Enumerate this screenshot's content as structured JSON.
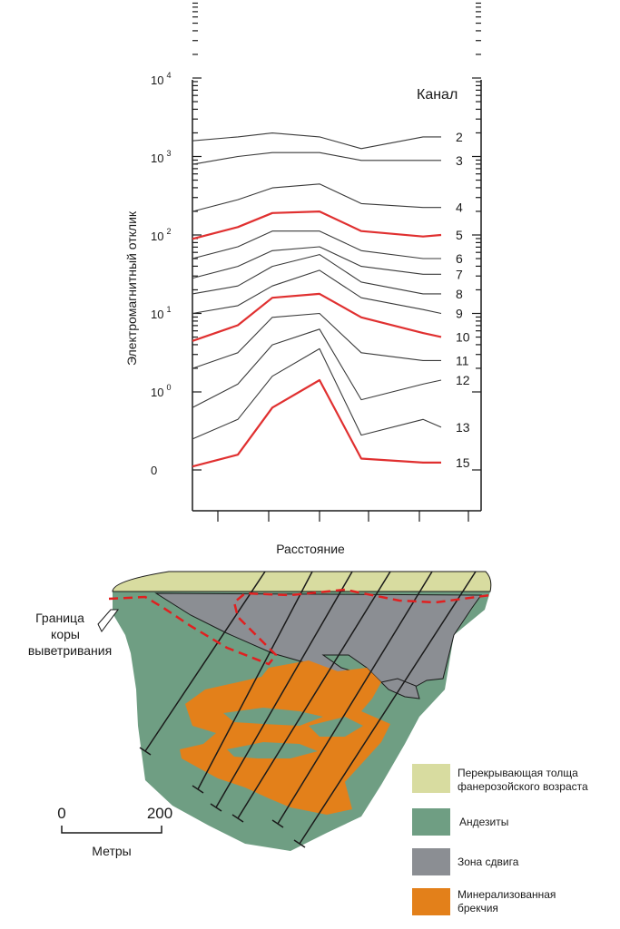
{
  "chart_data": {
    "type": "line",
    "y_axis_label": "Электромагнитный отклик",
    "x_axis_label": "Расстояние",
    "y_scale": "log",
    "y_tick_labels": [
      {
        "base": "10",
        "exp": "4"
      },
      {
        "base": "10",
        "exp": "3"
      },
      {
        "base": "10",
        "exp": "2"
      },
      {
        "base": "10",
        "exp": "1"
      },
      {
        "base": "10",
        "exp": "0"
      },
      {
        "base": "0",
        "exp": ""
      }
    ],
    "channel_header": "Канал",
    "highlight_color": "#e03030",
    "line_color": "#3a3a3a",
    "channels": [
      {
        "label": "2",
        "highlight": false,
        "values": [
          3.2,
          3.25,
          3.3,
          3.25,
          3.1,
          3.25,
          3.25
        ]
      },
      {
        "label": "3",
        "highlight": false,
        "values": [
          2.9,
          3.0,
          3.05,
          3.05,
          2.95,
          2.95,
          2.95
        ]
      },
      {
        "label": "4",
        "highlight": false,
        "values": [
          2.3,
          2.45,
          2.6,
          2.65,
          2.4,
          2.35,
          2.35
        ]
      },
      {
        "label": "5",
        "highlight": true,
        "values": [
          1.95,
          2.1,
          2.28,
          2.3,
          2.05,
          1.98,
          2.0
        ]
      },
      {
        "label": "6",
        "highlight": false,
        "values": [
          1.7,
          1.85,
          2.05,
          2.05,
          1.8,
          1.7,
          1.7
        ]
      },
      {
        "label": "7",
        "highlight": false,
        "values": [
          1.45,
          1.6,
          1.8,
          1.85,
          1.6,
          1.5,
          1.5
        ]
      },
      {
        "label": "8",
        "highlight": false,
        "values": [
          1.25,
          1.35,
          1.6,
          1.75,
          1.4,
          1.25,
          1.25
        ]
      },
      {
        "label": "9",
        "highlight": false,
        "values": [
          1.0,
          1.1,
          1.35,
          1.55,
          1.2,
          1.05,
          1.0
        ]
      },
      {
        "label": "10",
        "highlight": true,
        "values": [
          0.65,
          0.85,
          1.2,
          1.25,
          0.95,
          0.75,
          0.7
        ]
      },
      {
        "label": "11",
        "highlight": false,
        "values": [
          0.3,
          0.5,
          0.95,
          1.0,
          0.5,
          0.4,
          0.4
        ]
      },
      {
        "label": "12",
        "highlight": false,
        "values": [
          -0.2,
          0.1,
          0.6,
          0.8,
          -0.1,
          0.1,
          0.15
        ]
      },
      {
        "label": "13",
        "highlight": false,
        "values": [
          -0.6,
          -0.35,
          0.2,
          0.55,
          -0.55,
          -0.35,
          -0.45
        ]
      },
      {
        "label": "15",
        "highlight": true,
        "values": [
          -0.95,
          -0.8,
          -0.2,
          0.15,
          -0.85,
          -0.9,
          -0.9
        ]
      }
    ]
  },
  "section": {
    "weathering_boundary_label": [
      "Граница",
      "коры",
      "выветривания"
    ],
    "scale_bar": {
      "min_label": "0",
      "max_label": "200",
      "unit_label": "Метры"
    }
  },
  "legend": [
    {
      "lines": [
        "Перекрывающая толща",
        "фанерозойского возраста"
      ],
      "color": "#d8dca0"
    },
    {
      "lines": [
        "Андезиты"
      ],
      "color": "#6f9e83"
    },
    {
      "lines": [
        "Зона сдвига"
      ],
      "color": "#8b8e93"
    },
    {
      "lines": [
        "Минерализованная",
        "брекчия"
      ],
      "color": "#e3801a"
    }
  ],
  "colors": {
    "overburden": "#d8dca0",
    "andesite": "#6f9e83",
    "shear_zone": "#8b8e93",
    "breccia": "#e3801a",
    "boundary_dash": "#e02020"
  }
}
